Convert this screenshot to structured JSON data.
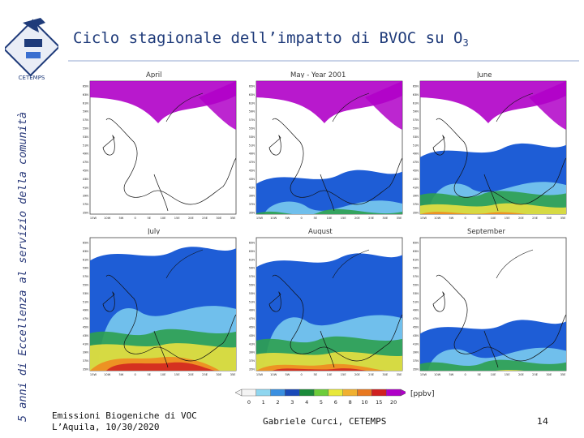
{
  "slide": {
    "title_main": "Ciclo stagionale dell’impatto di BVOC su O",
    "title_sub": "3",
    "side_caption": "5 anni di Eccellenza al servizio della comunità",
    "logo_text": "CETEMPS",
    "footer": {
      "line1": "Emissioni Biogeniche di VOC",
      "line2": "L’Aquila, 10/30/2020",
      "author": "Gabriele Curci, CETEMPS",
      "page": "14"
    }
  },
  "figure": {
    "header": "May - Year 2001",
    "unit": "[ppbv]",
    "panels": [
      {
        "month": "April"
      },
      {
        "month": "May"
      },
      {
        "month": "June"
      },
      {
        "month": "July"
      },
      {
        "month": "August"
      },
      {
        "month": "September"
      }
    ],
    "colorbar": {
      "ticks": [
        "0",
        "1",
        "2",
        "3",
        "4",
        "5",
        "6",
        "8",
        "10",
        "15",
        "20"
      ],
      "colors": [
        "#f4f4f4",
        "#8fd6ef",
        "#3a8fe0",
        "#1a4ab8",
        "#1a8a3a",
        "#6ccc3a",
        "#e8e83a",
        "#f0b030",
        "#e87820",
        "#d02020",
        "#b000c8"
      ]
    }
  },
  "colors": {
    "title": "#1f3b7a",
    "dark_blue": "#1e5dd6",
    "light_blue": "#7fd0f0",
    "green": "#2da050",
    "yellow": "#e8e040",
    "orange": "#f08a20",
    "red": "#d02020",
    "magenta": "#b000c8"
  },
  "map_axes": {
    "lat_ticks": [
      "65N",
      "63N",
      "61N",
      "59N",
      "57N",
      "55N",
      "53N",
      "51N",
      "49N",
      "47N",
      "45N",
      "43N",
      "41N",
      "39N",
      "37N",
      "35N"
    ],
    "lon_ticks": [
      "15W",
      "10W",
      "5W",
      "0",
      "5E",
      "10E",
      "15E",
      "20E",
      "25E",
      "30E",
      "35E"
    ]
  }
}
